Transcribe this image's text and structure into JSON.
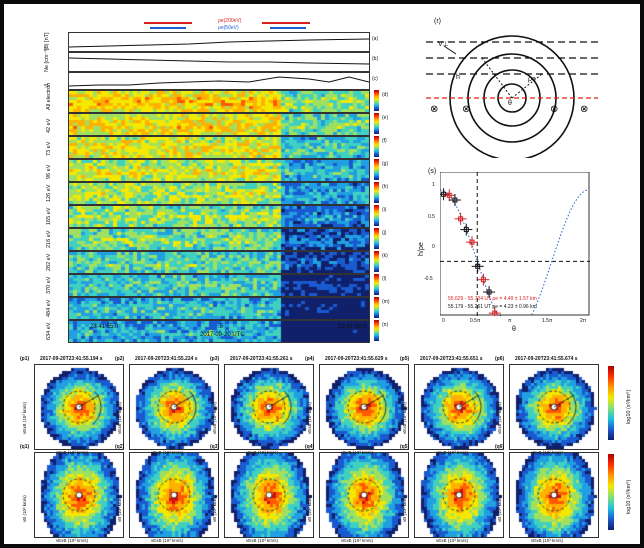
{
  "top_panels": {
    "rho_high": "ρe(200eV)",
    "rho_low": "ρe(50eV)",
    "labels": [
      "|B|\n[nT]",
      "Ne\n[cm-3]",
      "√l",
      "All electron"
    ],
    "panel_letters": [
      "(a)",
      "(b)",
      "(c)",
      "(d)",
      "(e)",
      "(f)",
      "(g)",
      "(h)",
      "(i)",
      "(j)",
      "(k)",
      "(l)",
      "(m)",
      "(n)"
    ],
    "energy_labels": [
      "All electron",
      "42 eV",
      "73 eV",
      "96 eV",
      "126 eV",
      "165 eV",
      "216 eV",
      "282 eV",
      "370 eV",
      "484 eV",
      "634 eV"
    ],
    "cbar_label": "log10 (DEF)\nkeV/(cm² s sr keV)",
    "time_ticks": [
      "23:41:55.0",
      ".5",
      "23:41:56.0"
    ],
    "time_axis": "2017-09-20 UTC"
  },
  "schematic": {
    "letter": "(r)",
    "labels": [
      "V⊥",
      "h",
      "ρe",
      "θ"
    ]
  },
  "plot_s": {
    "letter": "(s)",
    "ylabel": "h/ρe",
    "xlabel": "θ",
    "xticks": [
      "0",
      "0.5π",
      "π",
      "1.5π",
      "2π"
    ],
    "yticks": [
      "1",
      "0.5",
      "0",
      "-0.5"
    ],
    "legend_red": "55.629 - 55.704 UT ρe = 4.49 ± 1.57 km",
    "legend_black": "55.179 - 55.261 UT ρe = 4.23 ± 0.96 km",
    "color_red": "#d62020",
    "color_black": "#111111"
  },
  "vdf_top": [
    {
      "id": "(p1)",
      "title": "2017-09-20T23:41:55.194 s"
    },
    {
      "id": "(p2)",
      "title": "2017-09-20T23:41:55.224 s"
    },
    {
      "id": "(p3)",
      "title": "2017-09-20T23:41:55.261 s"
    },
    {
      "id": "(p4)",
      "title": "2017-09-20T23:41:55.629 s"
    },
    {
      "id": "(p5)",
      "title": "2017-09-20T23:41:55.651 s"
    },
    {
      "id": "(p6)",
      "title": "2017-09-20T23:41:55.674 s"
    }
  ],
  "vdf_bottom": [
    {
      "id": "(q1)"
    },
    {
      "id": "(q2)"
    },
    {
      "id": "(q3)"
    },
    {
      "id": "(q4)"
    },
    {
      "id": "(q5)"
    },
    {
      "id": "(q6)"
    }
  ],
  "vdf_axes": {
    "top_y": "vExB (10³ km/s)",
    "top_x": "vExB (10³ km/s)",
    "bottom_y": "vB (10³ km/s)",
    "bottom_x": "vExB (10³ km/s)",
    "ticks": [
      "-10",
      "-5",
      "0",
      "5",
      "10"
    ],
    "cbar_ticks": [
      "-25",
      "-26",
      "-27",
      "-28",
      "-29",
      "-30"
    ],
    "cbar_label": "log10 (s³/km⁶)"
  }
}
